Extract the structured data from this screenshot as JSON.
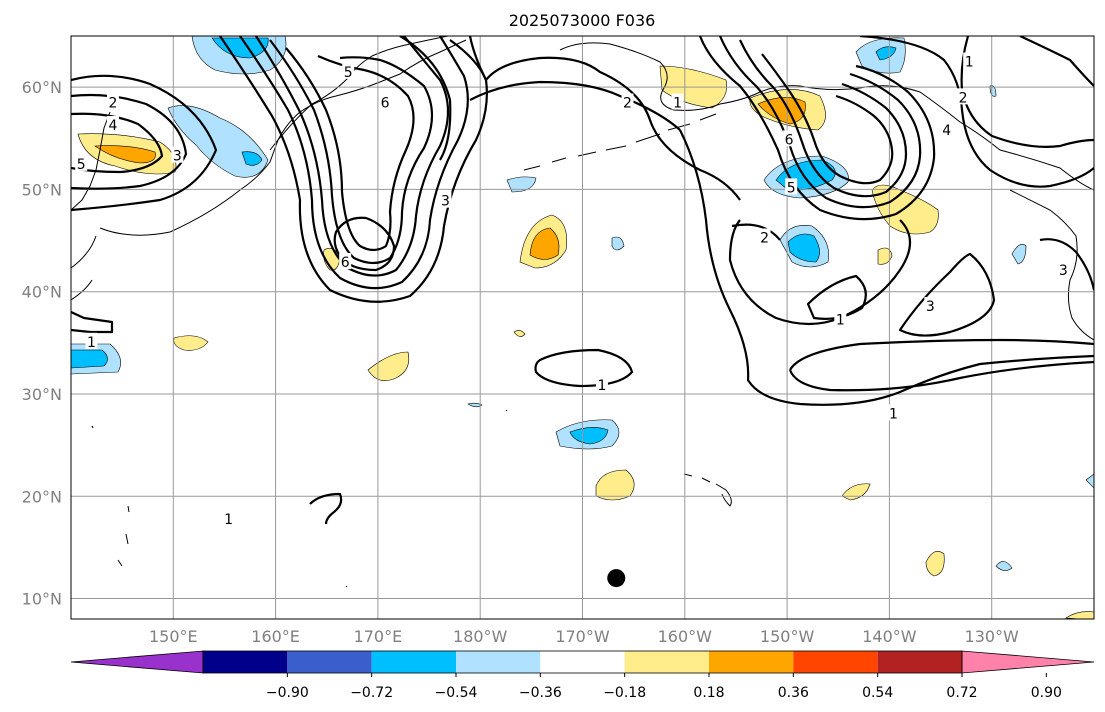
{
  "title": "2025073000 F036",
  "map": {
    "extent": {
      "lon_min": 140,
      "lon_max": 240,
      "lat_min": 8,
      "lat_max": 65
    },
    "lon_ticks": [
      {
        "lon": 150,
        "label": "150°E"
      },
      {
        "lon": 160,
        "label": "160°E"
      },
      {
        "lon": 170,
        "label": "170°E"
      },
      {
        "lon": 180,
        "label": "180°W"
      },
      {
        "lon": 190,
        "label": "170°W"
      },
      {
        "lon": 200,
        "label": "160°W"
      },
      {
        "lon": 210,
        "label": "150°W"
      },
      {
        "lon": 220,
        "label": "140°W"
      },
      {
        "lon": 230,
        "label": "130°W"
      }
    ],
    "lat_ticks": [
      {
        "lat": 10,
        "label": "10°N"
      },
      {
        "lat": 20,
        "label": "20°N"
      },
      {
        "lat": 30,
        "label": "30°N"
      },
      {
        "lat": 40,
        "label": "40°N"
      },
      {
        "lat": 50,
        "label": "50°N"
      },
      {
        "lat": 60,
        "label": "60°N"
      }
    ],
    "marker": {
      "lon": 193.3,
      "lat": 12.0
    },
    "grid": true
  },
  "colorbar": {
    "levels": [
      "−0.90",
      "−0.72",
      "−0.54",
      "−0.36",
      "−0.18",
      "0.18",
      "0.36",
      "0.54",
      "0.72",
      "0.90"
    ],
    "colors": [
      "#9932cc",
      "#00008b",
      "#3a5fcd",
      "#00bfff",
      "#b0e2ff",
      "#ffffff",
      "#ffec8b",
      "#ffa500",
      "#ff4500",
      "#b22222",
      "#ff82ab"
    ]
  },
  "contour_labels": [
    {
      "text": "1",
      "lon": 227.8,
      "lat": 62.5
    },
    {
      "text": "2",
      "lon": 227.2,
      "lat": 59.0
    },
    {
      "text": "4",
      "lon": 225.6,
      "lat": 55.8
    },
    {
      "text": "6",
      "lon": 210.2,
      "lat": 54.9
    },
    {
      "text": "5",
      "lon": 210.4,
      "lat": 50.2
    },
    {
      "text": "2",
      "lon": 207.8,
      "lat": 45.3
    },
    {
      "text": "1",
      "lon": 215.2,
      "lat": 37.3
    },
    {
      "text": "3",
      "lon": 224.0,
      "lat": 38.6
    },
    {
      "text": "1",
      "lon": 220.4,
      "lat": 28.1
    },
    {
      "text": "3",
      "lon": 237.0,
      "lat": 42.1
    },
    {
      "text": "1",
      "lon": 191.9,
      "lat": 30.9
    },
    {
      "text": "1",
      "lon": 155.4,
      "lat": 17.8
    },
    {
      "text": "1",
      "lon": 142.0,
      "lat": 35.1
    },
    {
      "text": "2",
      "lon": 144.1,
      "lat": 58.5
    },
    {
      "text": "4",
      "lon": 144.1,
      "lat": 56.3
    },
    {
      "text": "5",
      "lon": 141.0,
      "lat": 52.5
    },
    {
      "text": "3",
      "lon": 150.4,
      "lat": 53.3
    },
    {
      "text": "5",
      "lon": 167.1,
      "lat": 61.5
    },
    {
      "text": "6",
      "lon": 170.7,
      "lat": 58.5
    },
    {
      "text": "3",
      "lon": 176.6,
      "lat": 48.9
    },
    {
      "text": "6",
      "lon": 166.8,
      "lat": 42.9
    },
    {
      "text": "2",
      "lon": 194.4,
      "lat": 58.5
    },
    {
      "text": "1",
      "lon": 199.3,
      "lat": 58.5
    }
  ]
}
